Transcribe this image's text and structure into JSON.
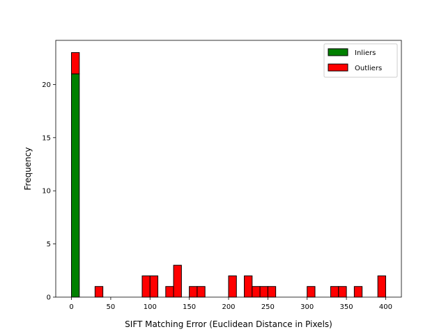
{
  "chart_data": {
    "type": "bar",
    "stacked": true,
    "title": "",
    "xlabel": "SIFT Matching Error (Euclidean Distance in Pixels)",
    "ylabel": "Frequency",
    "xlim": [
      -20,
      420
    ],
    "ylim": [
      0,
      24.15
    ],
    "xticks": [
      0,
      50,
      100,
      150,
      200,
      250,
      300,
      350,
      400
    ],
    "yticks": [
      0,
      5,
      10,
      15,
      20
    ],
    "bin_width": 10,
    "grid": false,
    "legend_position": "top-right",
    "series": [
      {
        "name": "Inliers",
        "color": "#008000",
        "bins": [
          {
            "start": 0,
            "count": 21
          }
        ]
      },
      {
        "name": "Outliers",
        "color": "#ff0000",
        "bins": [
          {
            "start": 0,
            "count": 2
          },
          {
            "start": 30,
            "count": 1
          },
          {
            "start": 90,
            "count": 2
          },
          {
            "start": 100,
            "count": 2
          },
          {
            "start": 120,
            "count": 1
          },
          {
            "start": 130,
            "count": 3
          },
          {
            "start": 150,
            "count": 1
          },
          {
            "start": 160,
            "count": 1
          },
          {
            "start": 200,
            "count": 2
          },
          {
            "start": 220,
            "count": 2
          },
          {
            "start": 230,
            "count": 1
          },
          {
            "start": 240,
            "count": 1
          },
          {
            "start": 250,
            "count": 1
          },
          {
            "start": 300,
            "count": 1
          },
          {
            "start": 330,
            "count": 1
          },
          {
            "start": 340,
            "count": 1
          },
          {
            "start": 360,
            "count": 1
          },
          {
            "start": 390,
            "count": 2
          }
        ]
      }
    ]
  }
}
